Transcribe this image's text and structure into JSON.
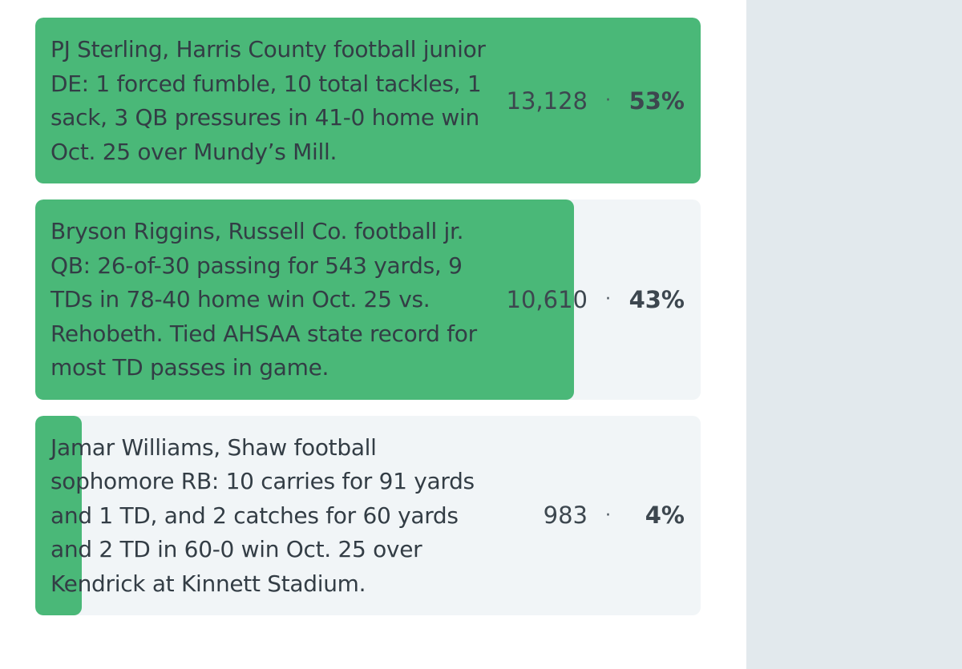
{
  "poll": {
    "options": [
      {
        "text": "PJ Sterling, Harris County football junior DE: 1 forced fumble, 10 total tackles, 1 sack, 3 QB pressures in 41-0 home win Oct. 25 over Mundy’s Mill.",
        "votes": "13,128",
        "separator": "·",
        "percent": "53%",
        "fill_fraction": 1.0
      },
      {
        "text": "Bryson Riggins, Russell Co. football jr. QB: 26-of-30 passing for 543 yards, 9 TDs in 78-40 home win Oct. 25 vs. Rehobeth. Tied AHSAA state record for most TD passes in game.",
        "votes": "10,610",
        "separator": "·",
        "percent": "43%",
        "fill_fraction": 0.81
      },
      {
        "text": "Jamar Williams, Shaw football sophomore RB: 10 carries for 91 yards and 1 TD, and 2 catches for 60 yards and 2 TD in 60-0 win Oct. 25 over Kendrick at Kinnett Stadium.",
        "votes": "983",
        "separator": "·",
        "percent": "4%",
        "fill_fraction": 0.07
      }
    ]
  },
  "colors": {
    "bar_fill": "#4ab878",
    "option_bg": "#f1f5f7",
    "sidebar_bg": "#e2e9ed",
    "text": "#333d45"
  }
}
